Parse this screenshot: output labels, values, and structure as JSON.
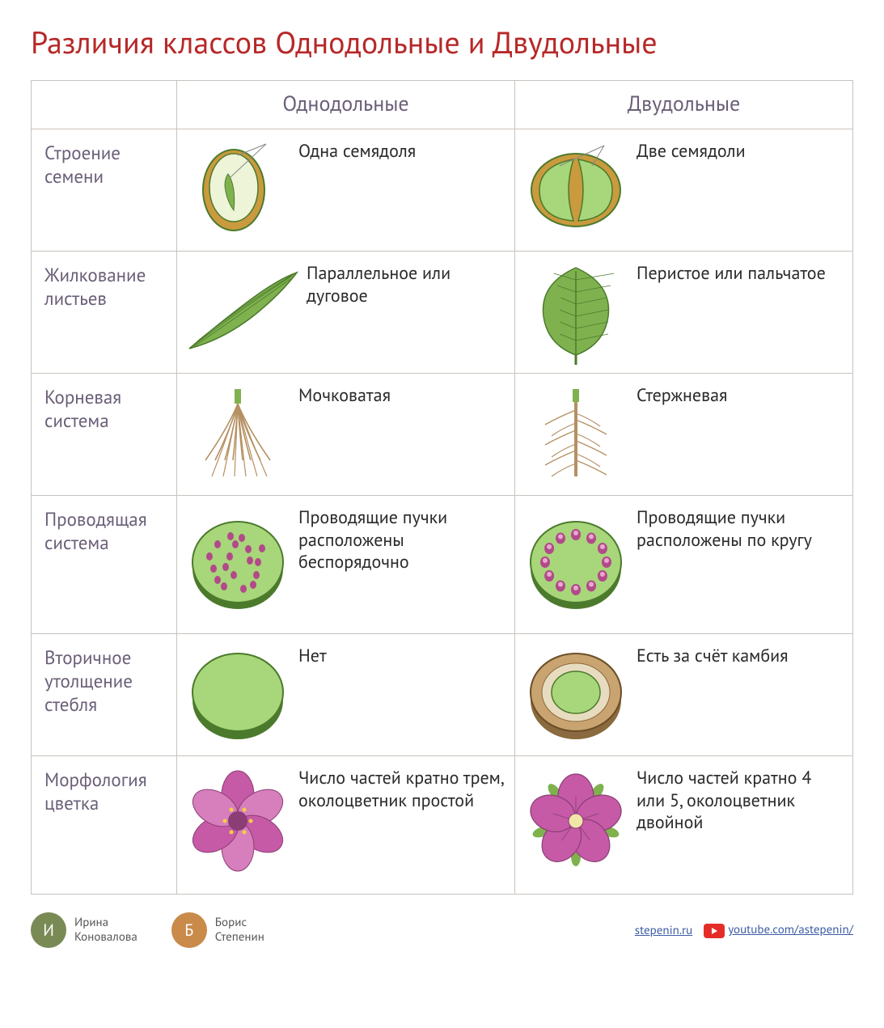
{
  "title": "Различия классов Однодольные и Двудольные",
  "colors": {
    "title": "#b72828",
    "header": "#6b5f78",
    "rowlabel": "#6b5f78",
    "celltext": "#2a2a2a",
    "border": "#c8c2bc",
    "green_light": "#a8d67a",
    "green_mid": "#7fb24f",
    "green_dark": "#4c7a2c",
    "seed_outer": "#c99a3e",
    "root": "#b59062",
    "bundle": "#b24a8a",
    "cambium": "#c9a470",
    "flower": "#c65aa6",
    "flower_dark": "#8a3e75",
    "link": "#3b5ba5",
    "youtube": "#e52d27",
    "avatar1": "#7a8a55",
    "avatar2": "#c98a4a"
  },
  "columns": [
    "",
    "Однодольные",
    "Двудольные"
  ],
  "rows": [
    {
      "label": "Строение семени",
      "mono": {
        "text": "Одна семядоля",
        "icon": "seed-one"
      },
      "di": {
        "text": "Две семядоли",
        "icon": "seed-two"
      }
    },
    {
      "label": "Жилкование листьев",
      "mono": {
        "text": "Параллельное или дуговое",
        "icon": "leaf-parallel"
      },
      "di": {
        "text": "Перистое или пальчатое",
        "icon": "leaf-pinnate"
      }
    },
    {
      "label": "Корневая система",
      "mono": {
        "text": "Мочковатая",
        "icon": "root-fibrous"
      },
      "di": {
        "text": "Стержневая",
        "icon": "root-tap"
      }
    },
    {
      "label": "Проводящая система",
      "mono": {
        "text": "Проводящие пучки расположены беспорядочно",
        "icon": "stem-scatter"
      },
      "di": {
        "text": "Проводящие пучки расположены по кругу",
        "icon": "stem-ring"
      }
    },
    {
      "label": "Вторичное утолщение стебля",
      "mono": {
        "text": "Нет",
        "icon": "stem-plain"
      },
      "di": {
        "text": "Есть за счёт камбия",
        "icon": "stem-cambium"
      }
    },
    {
      "label": "Морфология цветка",
      "mono": {
        "text": "Число частей кратно трем, околоцветник простой",
        "icon": "flower-3"
      },
      "di": {
        "text": "Число частей кратно 4 или 5, околоцветник двойной",
        "icon": "flower-5"
      }
    }
  ],
  "footer": {
    "authors": [
      {
        "first": "Ирина",
        "last": "Коновалова"
      },
      {
        "first": "Борис",
        "last": "Степенин"
      }
    ],
    "site": "stepenin.ru",
    "youtube": "youtube.com/astepenin/"
  }
}
